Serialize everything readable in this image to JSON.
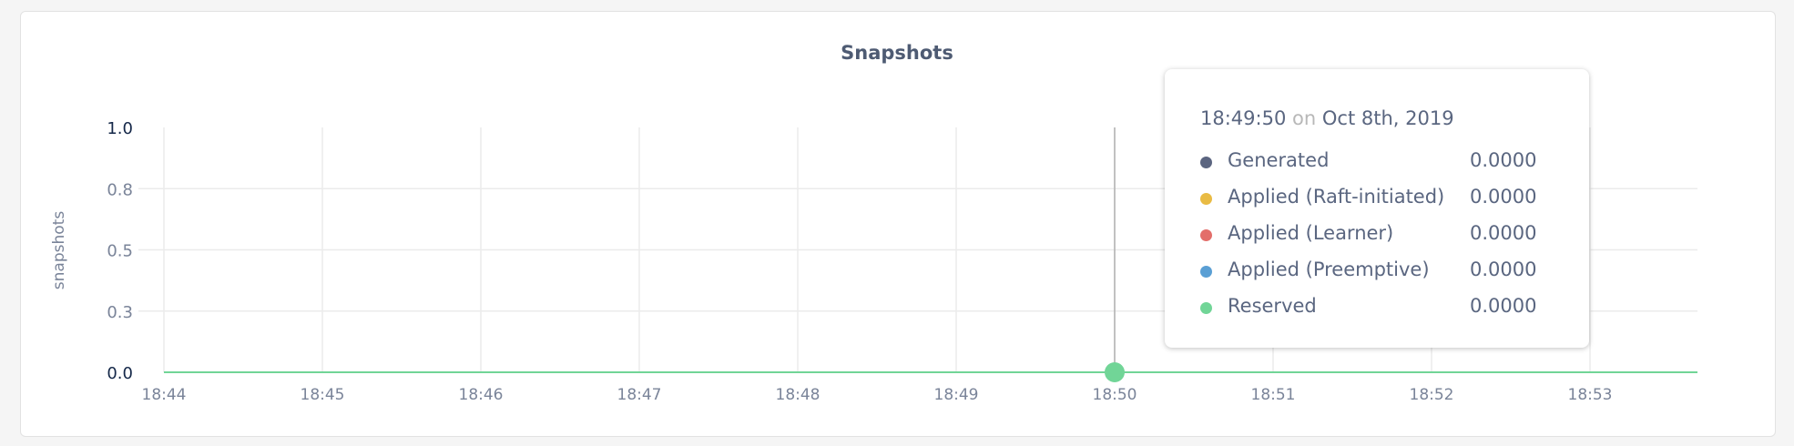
{
  "chart_data": {
    "type": "line",
    "title": "Snapshots",
    "ylabel": "snapshots",
    "xlabel": "",
    "ylim": [
      0,
      1
    ],
    "y_ticks": [
      {
        "v": 1.0,
        "label": "1.0"
      },
      {
        "v": 0.75,
        "label": "0.8"
      },
      {
        "v": 0.5,
        "label": "0.5"
      },
      {
        "v": 0.25,
        "label": "0.3"
      },
      {
        "v": 0,
        "label": "0.0"
      }
    ],
    "x_ticks": [
      "18:44",
      "18:45",
      "18:46",
      "18:47",
      "18:48",
      "18:49",
      "18:50",
      "18:51",
      "18:52",
      "18:53"
    ],
    "grid": true,
    "series": [
      {
        "name": "Generated",
        "color": "#5b6580",
        "values": [
          0,
          0,
          0,
          0,
          0,
          0,
          0,
          0,
          0,
          0
        ]
      },
      {
        "name": "Applied (Raft-initiated)",
        "color": "#e9bb44",
        "values": [
          0,
          0,
          0,
          0,
          0,
          0,
          0,
          0,
          0,
          0
        ]
      },
      {
        "name": "Applied (Learner)",
        "color": "#e36e6a",
        "values": [
          0,
          0,
          0,
          0,
          0,
          0,
          0,
          0,
          0,
          0
        ]
      },
      {
        "name": "Applied (Preemptive)",
        "color": "#5a9fd4",
        "values": [
          0,
          0,
          0,
          0,
          0,
          0,
          0,
          0,
          0,
          0
        ]
      },
      {
        "name": "Reserved",
        "color": "#71d597",
        "values": [
          0,
          0,
          0,
          0,
          0,
          0,
          0,
          0,
          0,
          0
        ]
      }
    ],
    "hover_x": "18:50"
  },
  "tooltip": {
    "time": "18:49:50",
    "on": "on",
    "date": "Oct 8th, 2019",
    "rows": [
      {
        "label": "Generated",
        "value": "0.0000",
        "color": "#5b6580"
      },
      {
        "label": "Applied (Raft-initiated)",
        "value": "0.0000",
        "color": "#e9bb44"
      },
      {
        "label": "Applied (Learner)",
        "value": "0.0000",
        "color": "#e36e6a"
      },
      {
        "label": "Applied (Preemptive)",
        "value": "0.0000",
        "color": "#5a9fd4"
      },
      {
        "label": "Reserved",
        "value": "0.0000",
        "color": "#71d597"
      }
    ]
  }
}
